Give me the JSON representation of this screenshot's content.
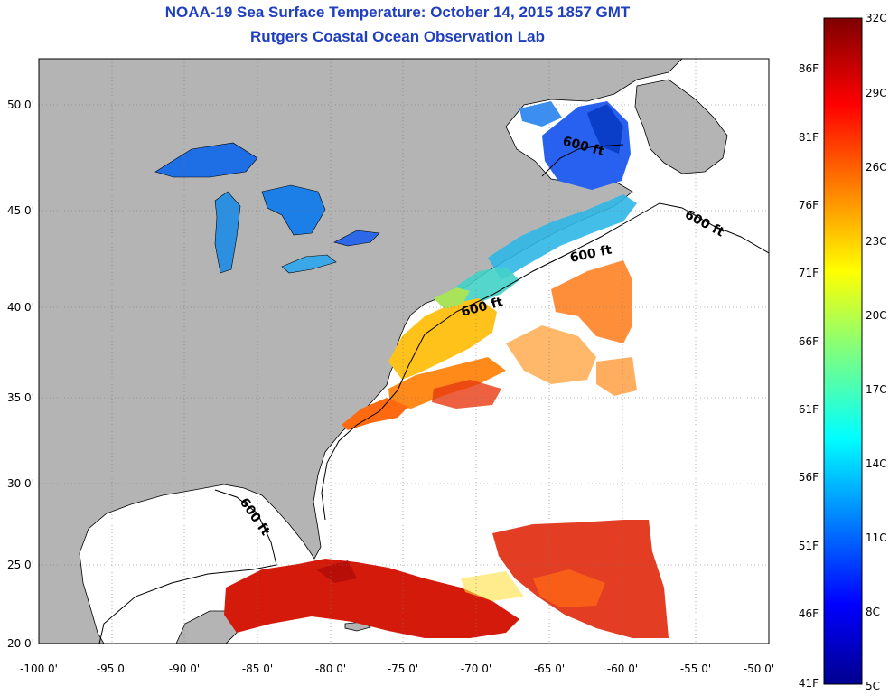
{
  "header": {
    "title": "NOAA-19 Sea Surface Temperature:  October 14, 2015 1857 GMT",
    "subtitle": "Rutgers Coastal Ocean Observation Lab"
  },
  "map": {
    "lon_ticks": [
      "-100 0'",
      "-95 0'",
      "-90 0'",
      "-85 0'",
      "-80 0'",
      "-75 0'",
      "-70 0'",
      "-65 0'",
      "-60 0'",
      "-55 0'",
      "-50 0'"
    ],
    "lat_ticks": [
      "50 0'",
      "45 0'",
      "40 0'",
      "35 0'",
      "30 0'",
      "25 0'",
      "20 0'"
    ],
    "isobath_label": "600 ft",
    "land_color": "#b4b4b4",
    "no_data_color": "#ffffff"
  },
  "colorbar": {
    "fahrenheit_labels": [
      "86F",
      "81F",
      "76F",
      "71F",
      "66F",
      "61F",
      "56F",
      "51F",
      "46F",
      "41F"
    ],
    "celsius_labels": [
      "32C",
      "29C",
      "26C",
      "23C",
      "20C",
      "17C",
      "14C",
      "11C",
      "8C",
      "5C"
    ]
  }
}
